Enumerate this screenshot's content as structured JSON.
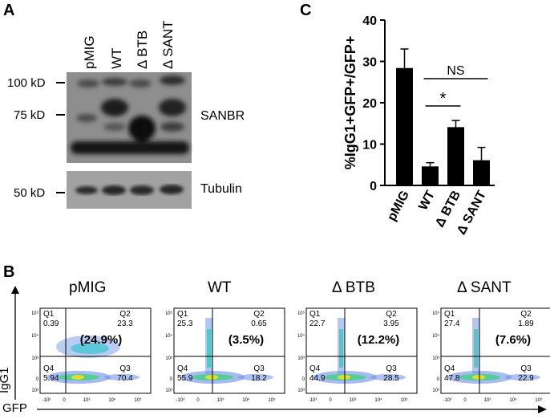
{
  "panelA": {
    "letter": "A",
    "lanes": [
      "pMIG",
      "WT",
      "Δ BTB",
      "Δ SANT"
    ],
    "markers": [
      "100 kD",
      "75 kD",
      "50 kD"
    ],
    "blot_labels": [
      "SANBR",
      "Tubulin"
    ]
  },
  "panelC": {
    "letter": "C"
  },
  "chart_data": {
    "type": "bar",
    "categories": [
      "pMIG",
      "WT",
      "Δ BTB",
      "Δ SANT"
    ],
    "values": [
      28.4,
      4.6,
      14.1,
      6.1
    ],
    "errors": [
      4.6,
      0.9,
      1.6,
      3.1
    ],
    "ylabel": "%IgG1+GFP+/GFP+",
    "ylim": [
      0,
      40
    ],
    "yticks": [
      0,
      10,
      20,
      30,
      40
    ],
    "annotations": [
      {
        "text": "NS",
        "from": "WT",
        "to": "Δ SANT"
      },
      {
        "text": "*",
        "from": "WT",
        "to": "Δ BTB"
      }
    ]
  },
  "panelB": {
    "letter": "B",
    "y_axis_label": "IgG1",
    "x_axis_label": "GFP",
    "plots": [
      {
        "title": "pMIG",
        "q1": "0.39",
        "q2": "23.3",
        "q3": "70.4",
        "q4": "5.94",
        "highlight": "(24.9%)"
      },
      {
        "title": "WT",
        "q1": "25.3",
        "q2": "0.65",
        "q3": "18.2",
        "q4": "55.9",
        "highlight": "(3.5%)"
      },
      {
        "title": "Δ BTB",
        "q1": "22.7",
        "q2": "3.95",
        "q3": "28.5",
        "q4": "44.9",
        "highlight": "(12.2%)"
      },
      {
        "title": "Δ SANT",
        "q1": "27.4",
        "q2": "1.89",
        "q3": "22.9",
        "q4": "47.8",
        "highlight": "(7.6%)"
      }
    ],
    "quadrant_names": [
      "Q1",
      "Q2",
      "Q3",
      "Q4"
    ]
  }
}
